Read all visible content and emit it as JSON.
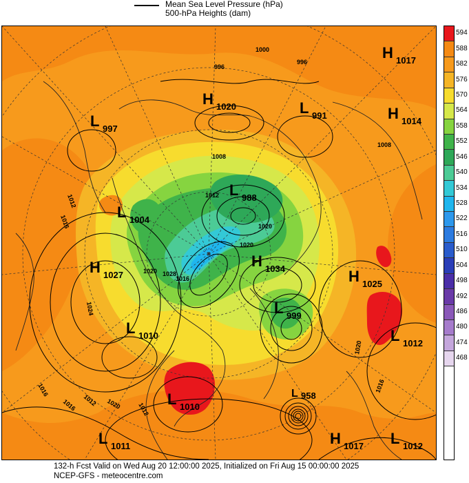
{
  "legend": {
    "mslp_label": "Mean Sea Level Pressure (hPa)",
    "heights_label": "500-hPa Heights (dam)"
  },
  "colorbar": {
    "values": [
      "594",
      "588",
      "582",
      "576",
      "570",
      "564",
      "558",
      "552",
      "546",
      "540",
      "534",
      "528",
      "522",
      "516",
      "510",
      "504",
      "498",
      "492",
      "486",
      "480",
      "474",
      "468"
    ],
    "colors": [
      "#e8171c",
      "#f58a14",
      "#f79a1c",
      "#f5b526",
      "#f7dc2e",
      "#d6e84a",
      "#86d440",
      "#3fb34a",
      "#2ea858",
      "#4ccb96",
      "#33c9d6",
      "#1fb6ee",
      "#2d98ec",
      "#2c7be0",
      "#2a5ccc",
      "#2a3eb8",
      "#4a2ea8",
      "#6a3aa8",
      "#8a58b8",
      "#a67ccc",
      "#c4a6dc",
      "#e6d6ee"
    ]
  },
  "pressure_centers": [
    {
      "type": "H",
      "value": "1017"
    },
    {
      "type": "H",
      "value": "1020"
    },
    {
      "type": "L",
      "value": "991"
    },
    {
      "type": "L",
      "value": "997"
    },
    {
      "type": "H",
      "value": "1014"
    },
    {
      "type": "L",
      "value": "988"
    },
    {
      "type": "L",
      "value": "1004"
    },
    {
      "type": "H",
      "value": "1034"
    },
    {
      "type": "H",
      "value": "1027"
    },
    {
      "type": "H",
      "value": "1025"
    },
    {
      "type": "L",
      "value": "999"
    },
    {
      "type": "L",
      "value": "1010"
    },
    {
      "type": "L",
      "value": "1012"
    },
    {
      "type": "L",
      "value": "1010"
    },
    {
      "type": "L",
      "value": "958"
    },
    {
      "type": "L",
      "value": "1011"
    },
    {
      "type": "H",
      "value": "1017"
    },
    {
      "type": "L",
      "value": "1012"
    }
  ],
  "isobar_labels": [
    "1000",
    "996",
    "996",
    "1008",
    "1008",
    "1012",
    "1016",
    "1020",
    "1020",
    "1024",
    "1028",
    "1016",
    "1016",
    "1012",
    "1016",
    "1020",
    "1012",
    "1016",
    "1020",
    "1012",
    "1020"
  ],
  "footer": {
    "line1": "132-h Fcst Valid on Wed Aug 20 12:00:00 2025, Initialized on Fri Aug 15 00:00:00 2025",
    "line2": "NCEP-GFS  - meteocentre.com"
  }
}
